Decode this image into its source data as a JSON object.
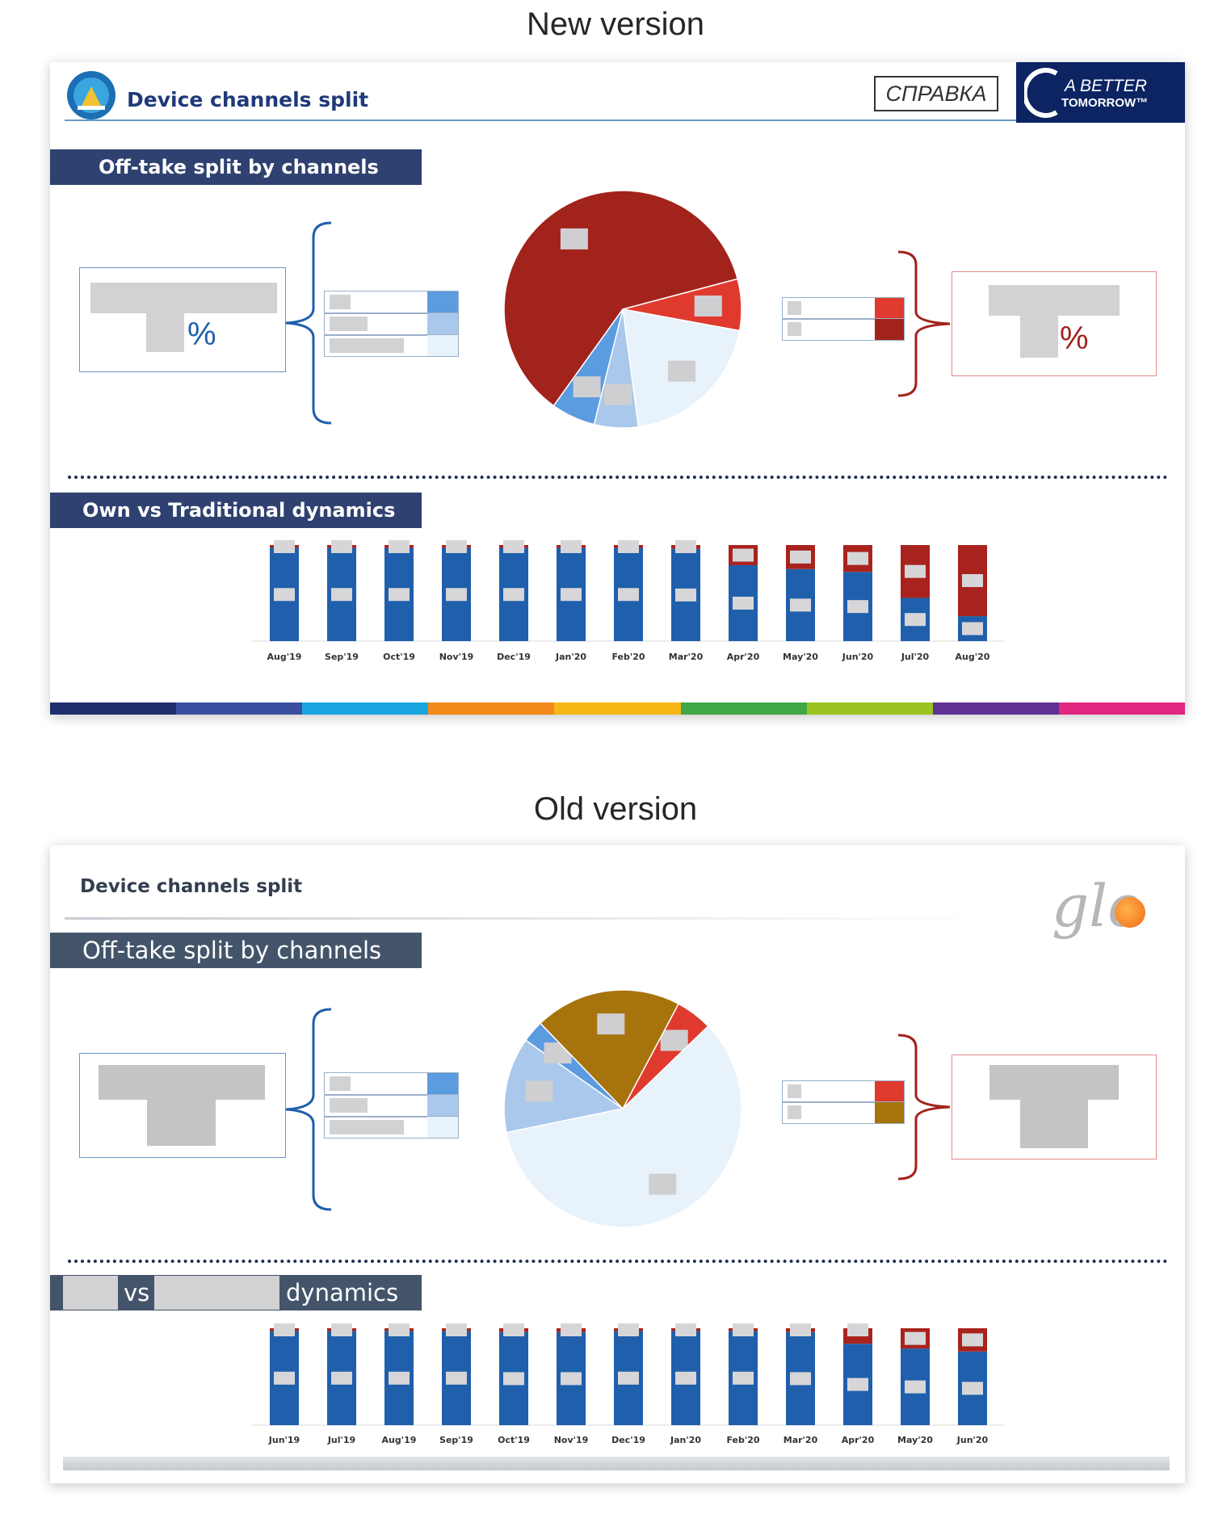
{
  "new_version": {
    "heading": "New version",
    "slide_title": "Device channels split",
    "stamp": "СПРАВКА",
    "logo_text_top": "A BETTER",
    "logo_text_bottom": "TOMORROW™",
    "section1_title": "Off-take split by channels",
    "section2_title": "Own vs Traditional dynamics",
    "left_percent": "%",
    "right_percent": "%",
    "colors": {
      "band": "#2f4170",
      "title": "#1f3a7a",
      "navy": "#0c2462"
    }
  },
  "old_version": {
    "heading": "Old version",
    "slide_title": "Device channels split",
    "logo_text": "glo",
    "section1_title": "Off-take split by channels",
    "section2_title_vs": "vs",
    "section2_title_dynamics": "dynamics",
    "colors": {
      "band": "#44546a",
      "title": "#333f50"
    }
  },
  "chart_data": [
    {
      "type": "pie",
      "name": "new-offtake-pie",
      "slices": [
        {
          "value": 61,
          "color": "#a2231b"
        },
        {
          "value": 7,
          "color": "#e03a2e"
        },
        {
          "value": 20,
          "color": "#e8f2fb"
        },
        {
          "value": 6,
          "color": "#a9c8ec"
        },
        {
          "value": 6,
          "color": "#5b9be0"
        }
      ]
    },
    {
      "type": "bar",
      "name": "new-dynamics",
      "categories": [
        "Aug'19",
        "Sep'19",
        "Oct'19",
        "Nov'19",
        "Dec'19",
        "Jan'20",
        "Feb'20",
        "Mar'20",
        "Apr'20",
        "May'20",
        "Jun'20",
        "Jul'20",
        "Aug'20"
      ],
      "series": [
        {
          "values": [
            97,
            97,
            97,
            97,
            97,
            97,
            97,
            96,
            79,
            75,
            72,
            45,
            26
          ],
          "color": "#1f5fac"
        },
        {
          "values": [
            3,
            3,
            3,
            3,
            3,
            3,
            3,
            4,
            21,
            25,
            28,
            55,
            74
          ],
          "color": "#a9231e"
        }
      ],
      "ylim": [
        0,
        100
      ]
    },
    {
      "type": "pie",
      "name": "old-offtake-pie",
      "slices": [
        {
          "value": 5,
          "color": "#e03a2e"
        },
        {
          "value": 59,
          "color": "#e8f2fb"
        },
        {
          "value": 13,
          "color": "#a9c8ec"
        },
        {
          "value": 3,
          "color": "#5b9be0"
        },
        {
          "value": 20,
          "color": "#a6730c"
        }
      ]
    },
    {
      "type": "bar",
      "name": "old-dynamics",
      "categories": [
        "Jun'19",
        "Jul'19",
        "Aug'19",
        "Sep'19",
        "Oct'19",
        "Nov'19",
        "Dec'19",
        "Jan'20",
        "Feb'20",
        "Mar'20",
        "Apr'20",
        "May'20",
        "Jun'20"
      ],
      "series": [
        {
          "values": [
            97,
            97,
            97,
            97,
            96,
            96,
            97,
            97,
            97,
            96,
            84,
            79,
            76
          ],
          "color": "#1f5fac"
        },
        {
          "values": [
            3,
            3,
            3,
            3,
            4,
            4,
            3,
            3,
            3,
            4,
            16,
            21,
            24
          ],
          "color": "#a9231e"
        }
      ],
      "ylim": [
        0,
        100
      ]
    }
  ]
}
